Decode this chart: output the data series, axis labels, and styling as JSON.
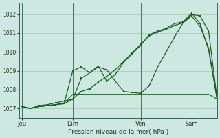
{
  "background_color": "#cce8e0",
  "grid_color": "#aaccbb",
  "line_color": "#1a6020",
  "title": "Pression niveau de la mer( hPa )",
  "xlabel_ticks": [
    "Jeu",
    "Dim",
    "Ven",
    "Sam"
  ],
  "xlabel_tick_positions": [
    0,
    36,
    84,
    120
  ],
  "ylim": [
    1006.5,
    1012.6
  ],
  "yticks": [
    1007,
    1008,
    1009,
    1010,
    1011,
    1012
  ],
  "xlim": [
    -2,
    138
  ],
  "vline_positions": [
    0,
    36,
    84,
    120
  ],
  "series1_x": [
    0,
    6,
    12,
    18,
    24,
    30,
    36,
    42,
    48,
    54,
    60,
    66,
    72,
    78,
    84,
    90,
    96,
    102,
    108,
    114,
    120,
    126,
    132,
    138
  ],
  "series1_y": [
    1007.1,
    1007.0,
    1007.15,
    1007.2,
    1007.3,
    1007.4,
    1007.5,
    1008.6,
    1008.9,
    1009.2,
    1009.05,
    1008.45,
    1007.9,
    1007.85,
    1007.8,
    1008.2,
    1009.2,
    1010.0,
    1010.8,
    1011.55,
    1012.0,
    1011.9,
    1011.1,
    1007.5
  ],
  "series2_x": [
    0,
    6,
    12,
    18,
    24,
    30,
    36,
    42,
    48,
    54,
    60,
    66,
    72,
    78,
    84,
    90,
    96,
    102,
    108,
    114,
    120,
    126,
    132,
    138
  ],
  "series2_y": [
    1007.1,
    1007.0,
    1007.1,
    1007.15,
    1007.2,
    1007.25,
    1007.5,
    1007.9,
    1008.05,
    1008.4,
    1008.7,
    1009.05,
    1009.5,
    1009.95,
    1010.4,
    1010.85,
    1011.05,
    1011.2,
    1011.4,
    1011.55,
    1011.9,
    1011.35,
    1010.2,
    1007.5
  ],
  "series3_x": [
    0,
    6,
    12,
    18,
    24,
    30,
    36,
    42,
    48,
    54,
    60,
    66,
    72,
    78,
    84,
    90,
    96,
    102,
    108,
    114,
    120,
    126,
    132,
    138
  ],
  "series3_y": [
    1007.1,
    1007.0,
    1007.1,
    1007.15,
    1007.2,
    1007.3,
    1009.0,
    1009.2,
    1008.9,
    1009.25,
    1008.45,
    1008.8,
    1009.45,
    1009.9,
    1010.35,
    1010.9,
    1011.1,
    1011.25,
    1011.5,
    1011.6,
    1012.05,
    1011.5,
    1010.1,
    1007.5
  ],
  "series4_x": [
    0,
    6,
    12,
    18,
    24,
    30,
    36,
    42,
    48,
    54,
    60,
    66,
    72,
    78,
    84,
    90,
    96,
    102,
    108,
    114,
    120,
    126,
    132,
    138
  ],
  "series4_y": [
    1007.1,
    1007.0,
    1007.1,
    1007.15,
    1007.2,
    1007.3,
    1007.75,
    1007.75,
    1007.75,
    1007.75,
    1007.75,
    1007.75,
    1007.75,
    1007.75,
    1007.75,
    1007.75,
    1007.75,
    1007.75,
    1007.75,
    1007.75,
    1007.75,
    1007.75,
    1007.75,
    1007.5
  ]
}
